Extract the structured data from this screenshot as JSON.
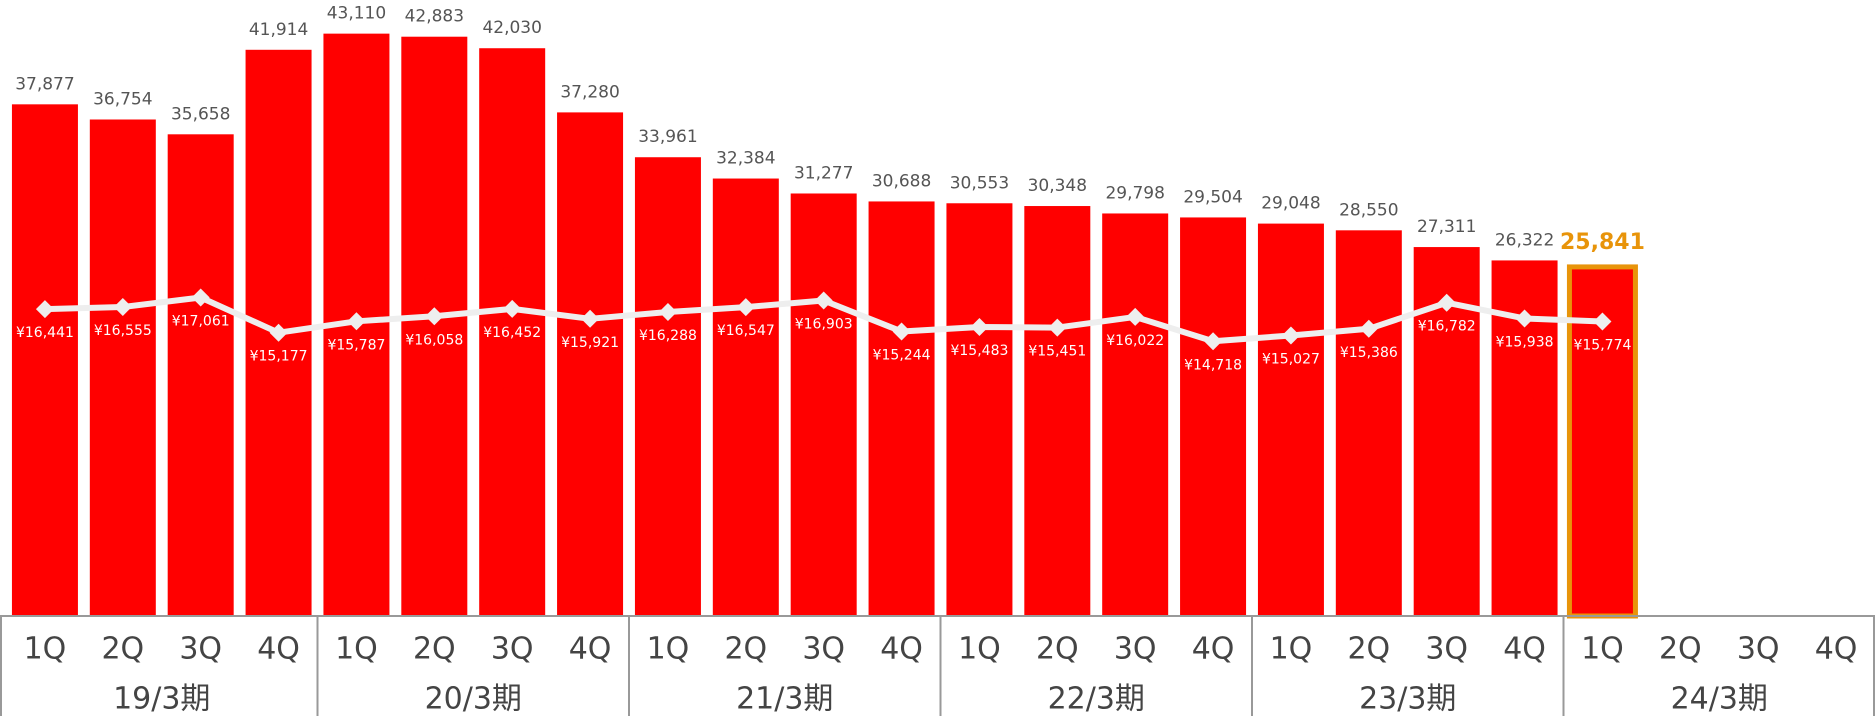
{
  "chart_data": {
    "type": "bar",
    "categories": [
      "1Q",
      "2Q",
      "3Q",
      "4Q",
      "1Q",
      "2Q",
      "3Q",
      "4Q",
      "1Q",
      "2Q",
      "3Q",
      "4Q",
      "1Q",
      "2Q",
      "3Q",
      "4Q",
      "1Q",
      "2Q",
      "3Q",
      "4Q",
      "1Q",
      "2Q",
      "3Q",
      "4Q"
    ],
    "groups": [
      "19/3期",
      "20/3期",
      "21/3期",
      "22/3期",
      "23/3期",
      "24/3期"
    ],
    "ylim": [
      0,
      45600
    ],
    "y2lim": [
      0,
      33000
    ],
    "series": [
      {
        "type": "bar",
        "color": "#ff0000",
        "values": [
          37877,
          36754,
          35658,
          41914,
          43110,
          42883,
          42030,
          37280,
          33961,
          32384,
          31277,
          30688,
          30553,
          30348,
          29798,
          29504,
          29048,
          28550,
          27311,
          26322,
          25841,
          null,
          null,
          null
        ],
        "value_labels": [
          "37,877",
          "36,754",
          "35,658",
          "41,914",
          "43,110",
          "42,883",
          "42,030",
          "37,280",
          "33,961",
          "32,384",
          "31,277",
          "30,688",
          "30,553",
          "30,348",
          "29,798",
          "29,504",
          "29,048",
          "28,550",
          "27,311",
          "26,322",
          "25,841",
          null,
          null,
          null
        ]
      },
      {
        "type": "line",
        "color": "#eeeeee",
        "axis": "y2",
        "values": [
          16441,
          16555,
          17061,
          15177,
          15787,
          16058,
          16452,
          15921,
          16288,
          16547,
          16903,
          15244,
          15483,
          15451,
          16022,
          14718,
          15027,
          15386,
          16782,
          15938,
          15774,
          null,
          null,
          null
        ],
        "value_labels": [
          "¥16,441",
          "¥16,555",
          "¥17,061",
          "¥15,177",
          "¥15,787",
          "¥16,058",
          "¥16,452",
          "¥15,921",
          "¥16,288",
          "¥16,547",
          "¥16,903",
          "¥15,244",
          "¥15,483",
          "¥15,451",
          "¥16,022",
          "¥14,718",
          "¥15,027",
          "¥15,386",
          "¥16,782",
          "¥15,938",
          "¥15,774",
          null,
          null,
          null
        ]
      }
    ],
    "highlight": {
      "index": 20,
      "color": "#e8940a"
    }
  }
}
